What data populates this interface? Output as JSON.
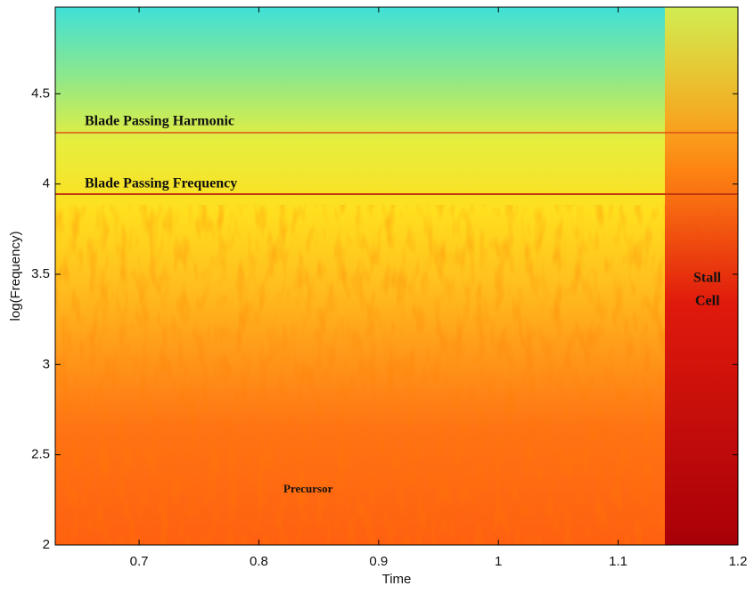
{
  "chart_data": {
    "type": "spectrogram",
    "xlabel": "Time",
    "ylabel": "log(Frequency)",
    "xlim": [
      0.63,
      1.2
    ],
    "ylim": [
      2,
      4.98
    ],
    "xticks": [
      0.7,
      0.8,
      0.9,
      1,
      1.1,
      1.2
    ],
    "yticks": [
      2,
      2.5,
      3,
      3.5,
      4,
      4.5
    ],
    "annotations": [
      "Blade Passing Harmonic",
      "Blade Passing Frequency",
      "Stall",
      "Cell",
      "Precursor"
    ]
  }
}
